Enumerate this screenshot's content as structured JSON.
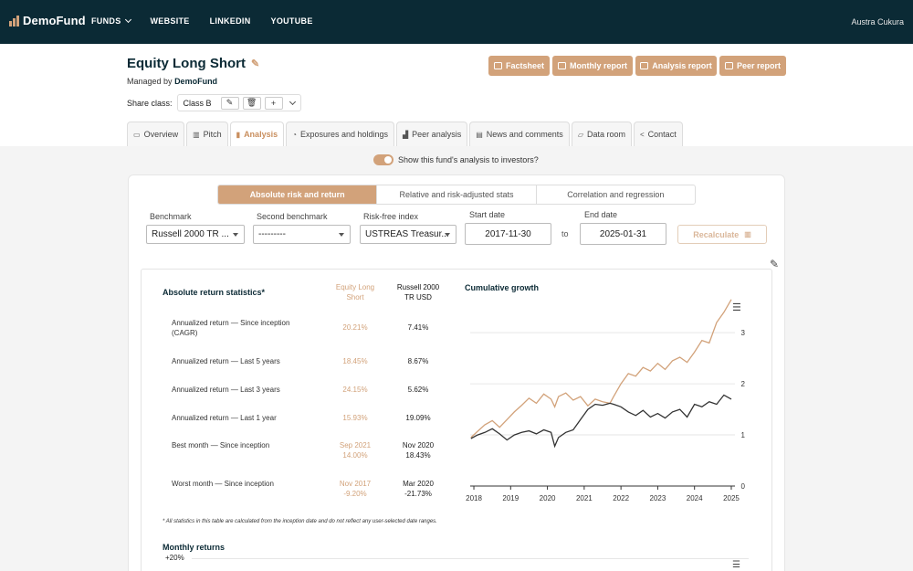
{
  "nav": {
    "logo": "DemoFund",
    "items": [
      "FUNDS",
      "WEBSITE",
      "LINKEDIN",
      "YOUTUBE"
    ],
    "user": "Austra Cukura"
  },
  "fund": {
    "title": "Equity Long Short",
    "managed_prefix": "Managed by",
    "manager": "DemoFund",
    "share_class_label": "Share class:",
    "share_class_value": "Class B"
  },
  "actions": [
    {
      "label": "Factsheet"
    },
    {
      "label": "Monthly report"
    },
    {
      "label": "Analysis report"
    },
    {
      "label": "Peer report"
    }
  ],
  "tabs": [
    {
      "label": "Overview",
      "icon": "monitor-icon",
      "glyph": "▭"
    },
    {
      "label": "Pitch",
      "icon": "presentation-icon",
      "glyph": "▥"
    },
    {
      "label": "Analysis",
      "icon": "bar-chart-icon",
      "glyph": "▮"
    },
    {
      "label": "Exposures and holdings",
      "icon": "pie-chart-icon",
      "glyph": "◔"
    },
    {
      "label": "Peer analysis",
      "icon": "peer-chart-icon",
      "glyph": "▟"
    },
    {
      "label": "News and comments",
      "icon": "comment-icon",
      "glyph": "▤"
    },
    {
      "label": "Data room",
      "icon": "folder-icon",
      "glyph": "▱"
    },
    {
      "label": "Contact",
      "icon": "share-icon",
      "glyph": "<"
    }
  ],
  "toggle_label": "Show this fund's analysis to investors?",
  "segments": [
    "Absolute risk and return",
    "Relative and risk-adjusted stats",
    "Correlation and regression"
  ],
  "filters": {
    "benchmark_label": "Benchmark",
    "benchmark_value": "Russell 2000 TR ...",
    "second_label": "Second benchmark",
    "second_value": "---------",
    "riskfree_label": "Risk-free index",
    "riskfree_value": "USTREAS Treasur...",
    "start_label": "Start date",
    "start_value": "2017-11-30",
    "to": "to",
    "end_label": "End date",
    "end_value": "2025-01-31",
    "recalc": "Recalculate"
  },
  "stats": {
    "title": "Absolute return statistics*",
    "col1": [
      "Equity Long",
      "Short"
    ],
    "col2": [
      "Russell 2000",
      "TR USD"
    ],
    "rows": [
      {
        "label": [
          "Annualized return — Since inception",
          "(CAGR)"
        ],
        "v1": [
          "20.21%"
        ],
        "v2": [
          "7.41%"
        ]
      },
      {
        "label": [
          "Annualized return — Last 5 years"
        ],
        "v1": [
          "18.45%"
        ],
        "v2": [
          "8.67%"
        ]
      },
      {
        "label": [
          "Annualized return — Last 3 years"
        ],
        "v1": [
          "24.15%"
        ],
        "v2": [
          "5.62%"
        ]
      },
      {
        "label": [
          "Annualized return — Last 1 year"
        ],
        "v1": [
          "15.93%"
        ],
        "v2": [
          "19.09%"
        ]
      },
      {
        "label": [
          "Best month — Since inception"
        ],
        "v1": [
          "Sep 2021",
          "14.00%"
        ],
        "v2": [
          "Nov 2020",
          "18.43%"
        ]
      },
      {
        "label": [
          "Worst month — Since inception"
        ],
        "v1": [
          "Nov 2017",
          "-9.20%"
        ],
        "v2": [
          "Mar 2020",
          "-21.73%"
        ]
      }
    ],
    "footnote": "* All statistics in this table are calculated from the inception date and do not reflect any user-selected date ranges."
  },
  "monthly": {
    "title": "Monthly returns",
    "top_tick": "+20%"
  },
  "colors": {
    "accent": "#d2a27a",
    "navy": "#0b2a35",
    "benchmark_line": "#333333"
  },
  "chart_data": {
    "type": "line",
    "title": "Cumulative growth",
    "x_ticks": [
      "2018",
      "2019",
      "2020",
      "2021",
      "2022",
      "2023",
      "2024",
      "2025"
    ],
    "y_ticks": [
      "0",
      "1",
      "2",
      "3"
    ],
    "ylim": [
      0,
      3.7
    ],
    "xlim": [
      2017.9,
      2025.1
    ],
    "series": [
      {
        "color": "#d2a27a",
        "x": [
          2017.92,
          2018.1,
          2018.3,
          2018.5,
          2018.7,
          2018.9,
          2019.1,
          2019.3,
          2019.5,
          2019.7,
          2019.9,
          2020.1,
          2020.2,
          2020.3,
          2020.5,
          2020.7,
          2020.9,
          2021.1,
          2021.3,
          2021.5,
          2021.7,
          2021.8,
          2022.0,
          2022.2,
          2022.4,
          2022.6,
          2022.8,
          2023.0,
          2023.2,
          2023.4,
          2023.6,
          2023.8,
          2024.0,
          2024.2,
          2024.4,
          2024.6,
          2024.8,
          2025.0
        ],
        "y": [
          0.95,
          1.07,
          1.2,
          1.28,
          1.15,
          1.3,
          1.45,
          1.58,
          1.72,
          1.62,
          1.8,
          1.7,
          1.55,
          1.75,
          1.82,
          1.68,
          1.75,
          1.57,
          1.7,
          1.65,
          1.62,
          1.75,
          2.0,
          2.2,
          2.15,
          2.32,
          2.25,
          2.4,
          2.28,
          2.45,
          2.52,
          2.42,
          2.62,
          2.85,
          2.8,
          3.2,
          3.4,
          3.65
        ]
      },
      {
        "color": "#333333",
        "x": [
          2017.92,
          2018.1,
          2018.3,
          2018.5,
          2018.7,
          2018.9,
          2019.1,
          2019.3,
          2019.5,
          2019.7,
          2019.9,
          2020.1,
          2020.2,
          2020.3,
          2020.5,
          2020.7,
          2020.9,
          2021.1,
          2021.3,
          2021.5,
          2021.7,
          2021.8,
          2022.0,
          2022.2,
          2022.4,
          2022.6,
          2022.8,
          2023.0,
          2023.2,
          2023.4,
          2023.6,
          2023.8,
          2024.0,
          2024.2,
          2024.4,
          2024.6,
          2024.8,
          2025.0
        ],
        "y": [
          0.93,
          1.0,
          1.05,
          1.12,
          1.02,
          0.9,
          1.0,
          1.05,
          1.08,
          1.02,
          1.1,
          1.05,
          0.78,
          0.95,
          1.05,
          1.1,
          1.3,
          1.5,
          1.6,
          1.58,
          1.62,
          1.6,
          1.55,
          1.45,
          1.38,
          1.48,
          1.35,
          1.42,
          1.33,
          1.45,
          1.5,
          1.35,
          1.6,
          1.55,
          1.65,
          1.6,
          1.78,
          1.7
        ]
      }
    ]
  }
}
